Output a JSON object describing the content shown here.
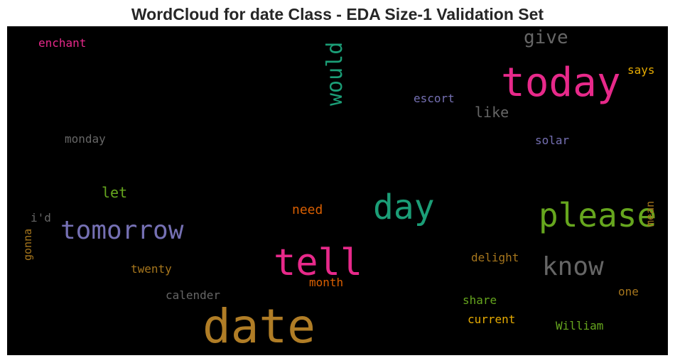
{
  "title": "WordCloud for date Class - EDA Size-1 Validation Set",
  "words": [
    {
      "text": "date",
      "color": "#b07d26"
    },
    {
      "text": "today",
      "color": "#e7298a"
    },
    {
      "text": "tell",
      "color": "#e7298a"
    },
    {
      "text": "day",
      "color": "#1b9e77"
    },
    {
      "text": "please",
      "color": "#66a61e"
    },
    {
      "text": "tomorrow",
      "color": "#7570b3"
    },
    {
      "text": "know",
      "color": "#666666"
    },
    {
      "text": "would",
      "color": "#1b9e77"
    },
    {
      "text": "give",
      "color": "#666666"
    },
    {
      "text": "like",
      "color": "#666666"
    },
    {
      "text": "escort",
      "color": "#7570b3"
    },
    {
      "text": "says",
      "color": "#e6ab02"
    },
    {
      "text": "solar",
      "color": "#7570b3"
    },
    {
      "text": "enchant",
      "color": "#e7298a"
    },
    {
      "text": "monday",
      "color": "#666666"
    },
    {
      "text": "let",
      "color": "#66a61e"
    },
    {
      "text": "need",
      "color": "#d95f02"
    },
    {
      "text": "i'd",
      "color": "#666666"
    },
    {
      "text": "gonna",
      "color": "#a6761d"
    },
    {
      "text": "mean",
      "color": "#a6761d"
    },
    {
      "text": "twenty",
      "color": "#a6761d"
    },
    {
      "text": "delight",
      "color": "#a6761d"
    },
    {
      "text": "month",
      "color": "#d95f02"
    },
    {
      "text": "calender",
      "color": "#666666"
    },
    {
      "text": "one",
      "color": "#a6761d"
    },
    {
      "text": "share",
      "color": "#66a61e"
    },
    {
      "text": "current",
      "color": "#e6ab02"
    },
    {
      "text": "William",
      "color": "#66a61e"
    }
  ]
}
